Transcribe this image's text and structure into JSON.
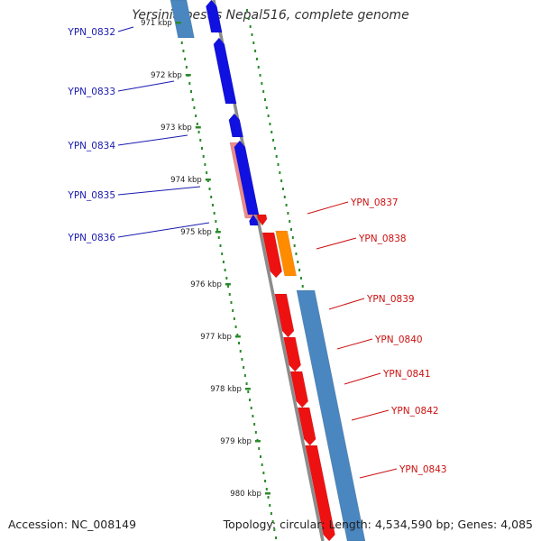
{
  "title": "Yersinia pestis Nepal516, complete genome",
  "footer": {
    "accession": "Accession: NC_008149",
    "summary": "Topology: circular; Length: 4,534,590 bp; Genes: 4,085"
  },
  "colors": {
    "backbone": "#8c8c8c",
    "tick_dots": "#2a8a2a",
    "forward_gene": "#1010e0",
    "reverse_gene": "#ee1111",
    "pink_feature": "#e88080",
    "orange_feature": "#ff8c00",
    "green_feature": "#33cc33",
    "steel_blue_feature": "#4a86bf",
    "left_label": "#1a1ab0",
    "right_label": "#cc1111"
  },
  "ticks": [
    {
      "label": "971 kbp"
    },
    {
      "label": "972 kbp"
    },
    {
      "label": "973 kbp"
    },
    {
      "label": "974 kbp"
    },
    {
      "label": "975 kbp"
    },
    {
      "label": "976 kbp"
    },
    {
      "label": "977 kbp"
    },
    {
      "label": "978 kbp"
    },
    {
      "label": "979 kbp"
    },
    {
      "label": "980 kbp"
    }
  ],
  "genes_left": [
    {
      "label": "YPN_0832"
    },
    {
      "label": "YPN_0833"
    },
    {
      "label": "YPN_0834"
    },
    {
      "label": "YPN_0835"
    },
    {
      "label": "YPN_0836"
    }
  ],
  "genes_right": [
    {
      "label": "YPN_0837"
    },
    {
      "label": "YPN_0838"
    },
    {
      "label": "YPN_0839"
    },
    {
      "label": "YPN_0840"
    },
    {
      "label": "YPN_0841"
    },
    {
      "label": "YPN_0842"
    },
    {
      "label": "YPN_0843"
    }
  ]
}
